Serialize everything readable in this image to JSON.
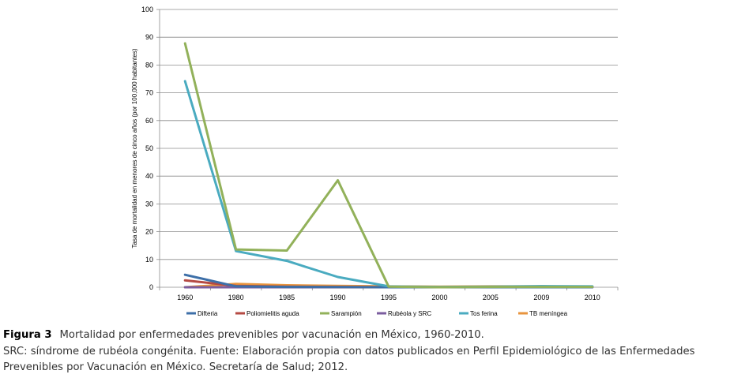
{
  "chart_data": {
    "type": "line",
    "categories": [
      "1960",
      "1980",
      "1985",
      "1990",
      "1995",
      "2000",
      "2005",
      "2009",
      "2010"
    ],
    "ylabel": "Tasa de mortalidad en menores de cinco años (por 100,000 habitantes)",
    "xlabel": "",
    "ylim": [
      0,
      100
    ],
    "yticks": [
      0,
      10,
      20,
      30,
      40,
      50,
      60,
      70,
      80,
      90,
      100
    ],
    "grid": "horizontal",
    "legend_position": "bottom",
    "series": [
      {
        "name": "Difteria",
        "color": "#3d6fa8",
        "values": [
          4.5,
          0.3,
          0.1,
          0.05,
          0,
          0,
          0,
          0,
          0
        ]
      },
      {
        "name": "Poliomielitis aguda",
        "color": "#b54a43",
        "values": [
          2.5,
          0.5,
          0.2,
          0.1,
          0,
          0,
          0,
          0,
          0
        ]
      },
      {
        "name": "Sarampión",
        "color": "#92b15a",
        "values": [
          87.8,
          13.6,
          13.2,
          38.5,
          0.2,
          0,
          0.1,
          0.1,
          0.1
        ]
      },
      {
        "name": "Rubéola y SRC",
        "color": "#7b5d9f",
        "values": [
          0,
          0,
          0,
          0,
          0,
          0,
          0,
          0.3,
          0.1
        ]
      },
      {
        "name": "Tos ferina",
        "color": "#4aabc0",
        "values": [
          74.2,
          13,
          9.5,
          3.7,
          0.3,
          0.1,
          0.2,
          0.4,
          0.3
        ]
      },
      {
        "name": "TB meníngea",
        "color": "#e8943e",
        "values": [
          0,
          1.2,
          0.7,
          0.5,
          0.3,
          0.2,
          0.3,
          0.3,
          0.2
        ]
      }
    ]
  },
  "caption": {
    "figure_label": "Figura 3",
    "title": "Mortalidad por enfermedades prevenibles por vacunación en México, 1960-2010.",
    "line2": "SRC: síndrome de rubéola congénita. Fuente: Elaboración propia con datos publicados en Perfil Epidemiológico de las Enfermedades",
    "line3": "Prevenibles por Vacunación en México. Secretaría de Salud; 2012."
  }
}
